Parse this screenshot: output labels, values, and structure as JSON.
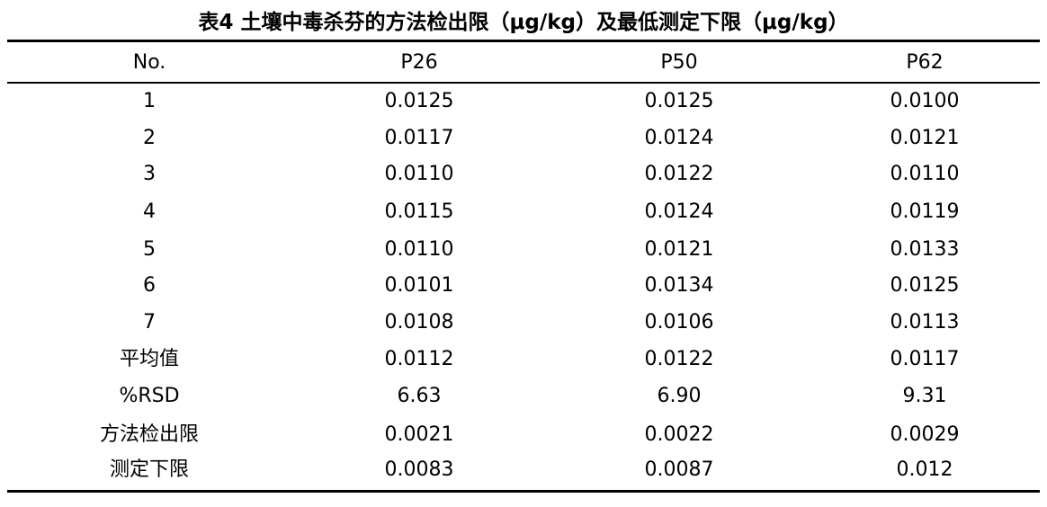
{
  "title": "表4  土壤中毒杀芬的方法检出限（μg/kg）及最低测定下限（μg/kg）",
  "table": {
    "header": [
      "No.",
      "P26",
      "P50",
      "P62"
    ],
    "rows": [
      [
        "1",
        "0.0125",
        "0.0125",
        "0.0100"
      ],
      [
        "2",
        "0.0117",
        "0.0124",
        "0.0121"
      ],
      [
        "3",
        "0.0110",
        "0.0122",
        "0.0110"
      ],
      [
        "4",
        "0.0115",
        "0.0124",
        "0.0119"
      ],
      [
        "5",
        "0.0110",
        "0.0121",
        "0.0133"
      ],
      [
        "6",
        "0.0101",
        "0.0134",
        "0.0125"
      ],
      [
        "7",
        "0.0108",
        "0.0106",
        "0.0113"
      ],
      [
        "平均值",
        "0.0112",
        "0.0122",
        "0.0117"
      ],
      [
        "%RSD",
        "6.63",
        "6.90",
        "9.31"
      ],
      [
        "方法检出限",
        "0.0021",
        "0.0022",
        "0.0029"
      ],
      [
        "测定下限",
        "0.0083",
        "0.0087",
        "0.012"
      ]
    ]
  }
}
